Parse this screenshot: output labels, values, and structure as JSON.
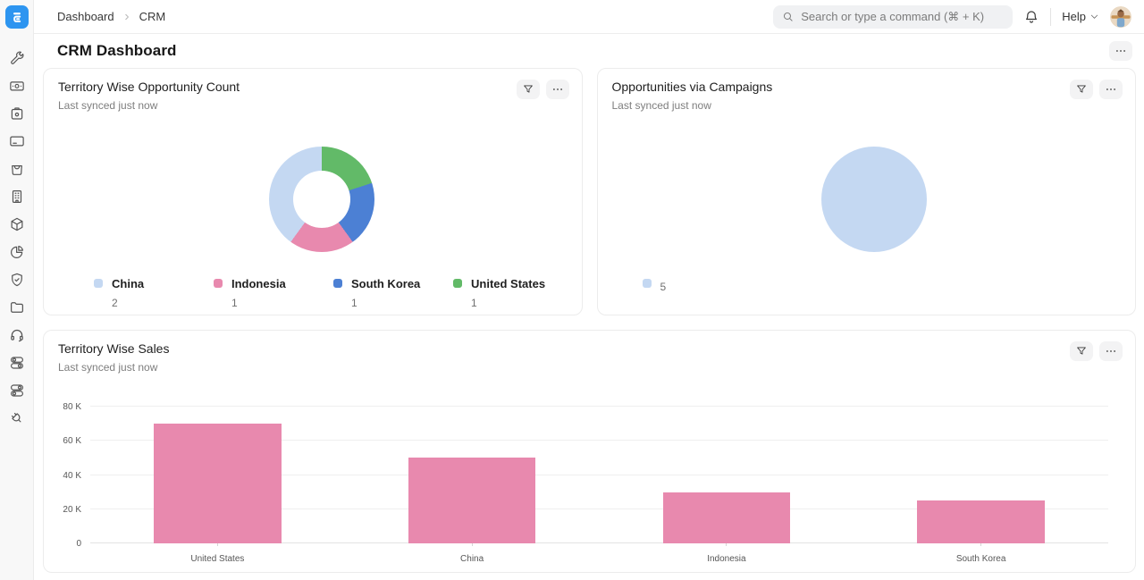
{
  "topbar": {
    "breadcrumb": [
      {
        "label": "Dashboard"
      },
      {
        "label": "CRM"
      }
    ],
    "search_placeholder": "Search or type a command (⌘ + K)",
    "help_label": "Help"
  },
  "page": {
    "title": "CRM Dashboard"
  },
  "sidebar": {
    "icons": [
      "tools",
      "banknote",
      "instant-camera",
      "credit-card",
      "shopping-bag",
      "building",
      "package",
      "pie-chart",
      "shield-check",
      "folder",
      "headset",
      "toggles",
      "toggles-alt",
      "plug"
    ]
  },
  "cards": [
    {
      "title": "Territory Wise Opportunity Count",
      "subtitle": "Last synced just now"
    },
    {
      "title": "Opportunities via Campaigns",
      "subtitle": "Last synced just now"
    },
    {
      "title": "Territory Wise Sales",
      "subtitle": "Last synced just now"
    }
  ],
  "chart_data": [
    {
      "type": "pie",
      "variant": "donut",
      "title": "Territory Wise Opportunity Count",
      "items": [
        {
          "label": "China",
          "value": 2,
          "color": "#c4d8f2"
        },
        {
          "label": "Indonesia",
          "value": 1,
          "color": "#e889ae"
        },
        {
          "label": "South Korea",
          "value": 1,
          "color": "#4c80d4"
        },
        {
          "label": "United States",
          "value": 1,
          "color": "#62ba68"
        }
      ],
      "legend_position": "bottom",
      "draw_order": "reverse-of-legend, clockwise from top"
    },
    {
      "type": "pie",
      "variant": "full",
      "title": "Opportunities via Campaigns",
      "items": [
        {
          "label": "",
          "value": 5,
          "color": "#c4d8f2"
        }
      ],
      "legend_position": "bottom"
    },
    {
      "type": "bar",
      "title": "Territory Wise Sales",
      "categories": [
        "United States",
        "China",
        "Indonesia",
        "South Korea"
      ],
      "values": [
        70000,
        50000,
        30000,
        25000
      ],
      "bar_color": "#e889ae",
      "ylim": [
        0,
        80000
      ],
      "yticks": [
        0,
        20000,
        40000,
        60000,
        80000
      ],
      "ytick_labels": [
        "0",
        "20 K",
        "40 K",
        "60 K",
        "80 K"
      ],
      "grid": true,
      "xlabel": "",
      "ylabel": ""
    }
  ]
}
